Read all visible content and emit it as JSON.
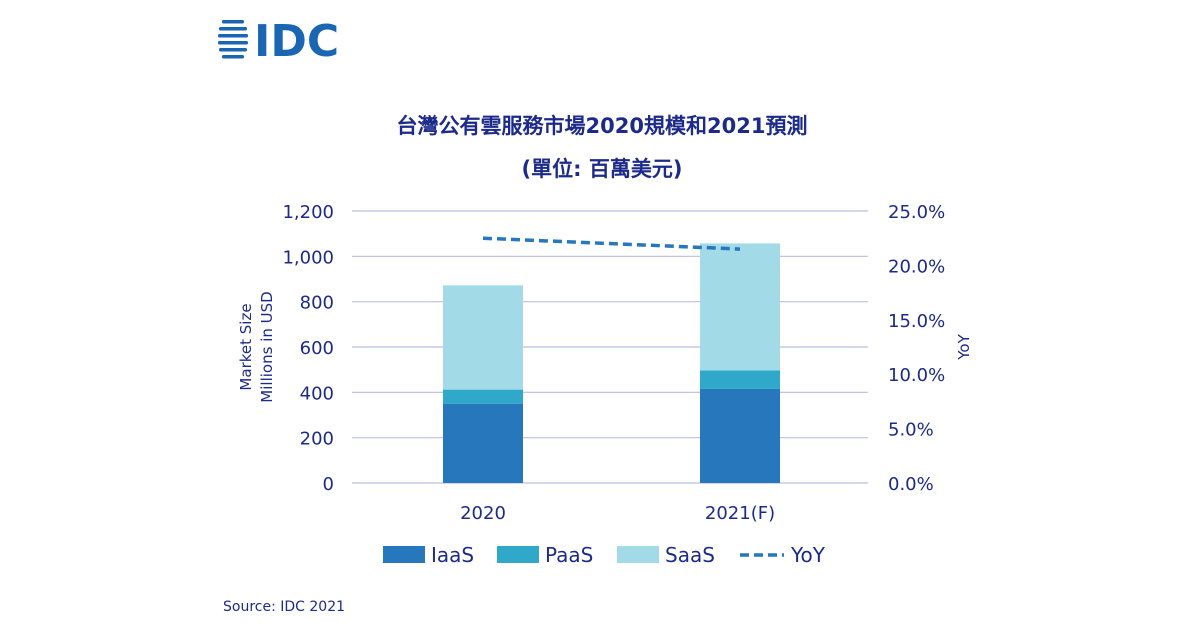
{
  "logo": {
    "text": "IDC",
    "color": "#1a66b3"
  },
  "source": "Source: IDC 2021",
  "chart_data": {
    "type": "bar",
    "stacked": true,
    "title": "台灣公有雲服務市場2020規模和2021預測",
    "subtitle": "(單位: 百萬美元)",
    "categories": [
      "2020",
      "2021(F)"
    ],
    "series": [
      {
        "name": "IaaS",
        "values": [
          350,
          415
        ],
        "color": "#2777bd"
      },
      {
        "name": "PaaS",
        "values": [
          62,
          82
        ],
        "color": "#2fa8c9"
      },
      {
        "name": "SaaS",
        "values": [
          460,
          560
        ],
        "color": "#a2dbe7"
      }
    ],
    "line_series": {
      "name": "YoY",
      "values": [
        22.5,
        21.5
      ],
      "color": "#2777bd",
      "dashed": true,
      "axis": "right"
    },
    "ylabel_lines": [
      "Market Size",
      "Millions in USD"
    ],
    "y2label": "YoY",
    "ylim": [
      0,
      1200
    ],
    "y_ticks": [
      "0",
      "200",
      "400",
      "600",
      "800",
      "1,000",
      "1,200"
    ],
    "y2lim": [
      0,
      25
    ],
    "y2_ticks": [
      "0.0%",
      "5.0%",
      "10.0%",
      "15.0%",
      "20.0%",
      "25.0%"
    ],
    "grid": true,
    "legend_position": "bottom"
  }
}
